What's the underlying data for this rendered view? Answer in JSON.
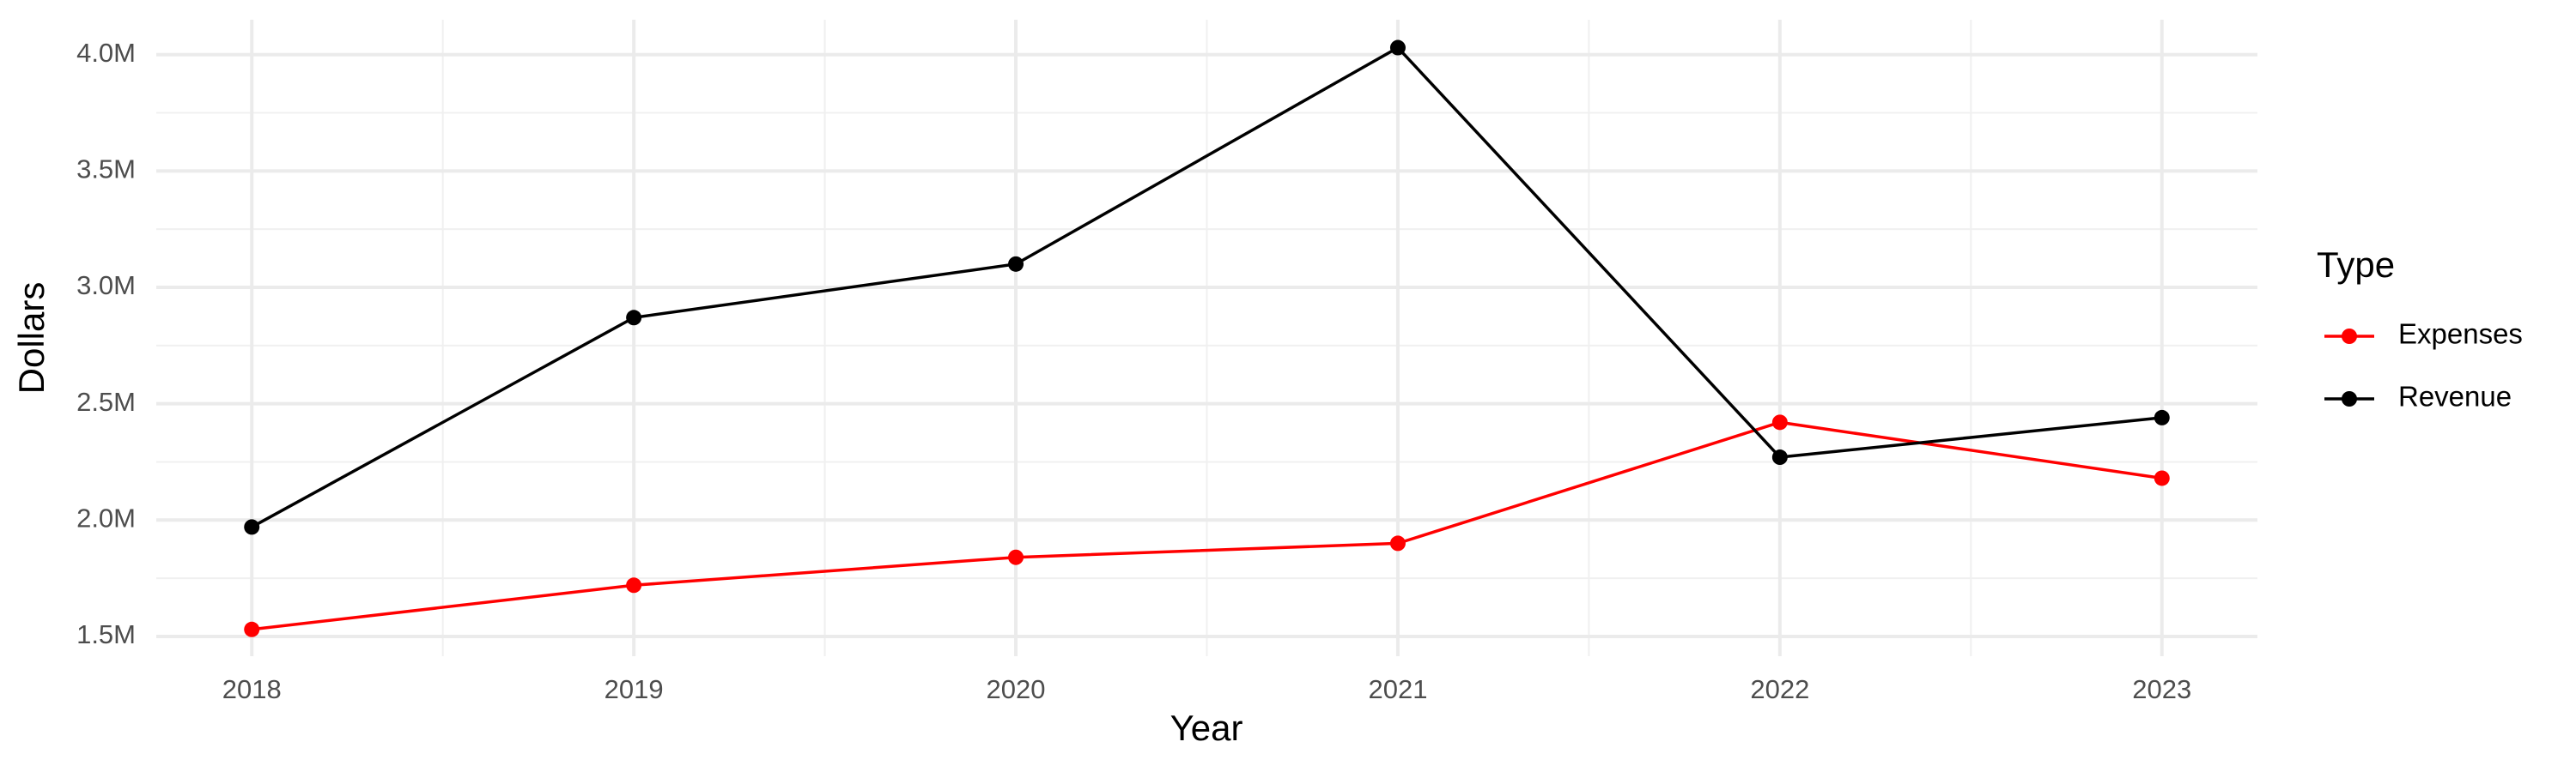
{
  "chart_data": {
    "type": "line",
    "x_label": "Year",
    "y_label": "Dollars",
    "legend_title": "Type",
    "legend_position": "right",
    "x": [
      2018,
      2019,
      2020,
      2021,
      2022,
      2023
    ],
    "series": [
      {
        "name": "Expenses",
        "color": "#ff0000",
        "values": [
          1530000,
          1720000,
          1840000,
          1900000,
          2420000,
          2180000
        ]
      },
      {
        "name": "Revenue",
        "color": "#000000",
        "values": [
          1970000,
          2870000,
          3100000,
          4030000,
          2270000,
          2440000
        ]
      }
    ],
    "xlim": [
      2017.75,
      2023.25
    ],
    "xticks": [
      2018,
      2019,
      2020,
      2021,
      2022,
      2023
    ],
    "ylim": [
      1415000,
      4150000
    ],
    "yticks": [
      {
        "value": 1500000,
        "label": "1.5M"
      },
      {
        "value": 2000000,
        "label": "2.0M"
      },
      {
        "value": 2500000,
        "label": "2.5M"
      },
      {
        "value": 3000000,
        "label": "3.0M"
      },
      {
        "value": 3500000,
        "label": "3.5M"
      },
      {
        "value": 4000000,
        "label": "4.0M"
      }
    ],
    "grid": true
  }
}
